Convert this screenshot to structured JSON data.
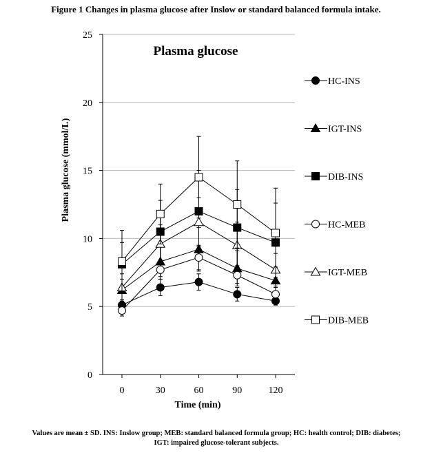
{
  "figure_title": "Figure 1 Changes in plasma glucose after Inslow or standard balanced formula intake.",
  "caption": {
    "line1": "Values are mean ± SD. INS: Inslow group; MEB: standard balanced formula group; HC: health control; DIB: diabetes;",
    "line2": "IGT: impaired glucose-tolerant subjects."
  },
  "chart_data": {
    "type": "line",
    "title": "Plasma glucose",
    "xlabel": "Time (min)",
    "ylabel": "Plasma glucose (mmol/L)",
    "x": [
      0,
      30,
      60,
      90,
      120
    ],
    "x_tick_labels": [
      "0",
      "30",
      "60",
      "90",
      "120"
    ],
    "ylim": [
      0,
      25
    ],
    "y_ticks": [
      0,
      5,
      10,
      15,
      20,
      25
    ],
    "grid": "horizontal",
    "legend_position": "right",
    "series": [
      {
        "name": "HC-INS",
        "marker": "circle",
        "fill": "filled",
        "values": [
          5.1,
          6.4,
          6.8,
          5.9,
          5.4
        ],
        "sd": [
          0.4,
          0.6,
          0.6,
          0.5,
          0.3
        ]
      },
      {
        "name": "IGT-INS",
        "marker": "triangle",
        "fill": "filled",
        "values": [
          6.2,
          8.3,
          9.2,
          7.8,
          6.9
        ],
        "sd": [
          0.8,
          1.1,
          1.6,
          1.3,
          1.0
        ]
      },
      {
        "name": "DIB-INS",
        "marker": "square",
        "fill": "filled",
        "values": [
          8.1,
          10.5,
          12.0,
          10.8,
          9.7
        ],
        "sd": [
          1.6,
          2.3,
          3.0,
          2.8,
          2.9
        ]
      },
      {
        "name": "HC-MEB",
        "marker": "circle",
        "fill": "open",
        "values": [
          4.7,
          7.7,
          8.6,
          7.3,
          5.9
        ],
        "sd": [
          0.4,
          0.7,
          0.9,
          0.6,
          0.5
        ]
      },
      {
        "name": "IGT-MEB",
        "marker": "triangle",
        "fill": "open",
        "values": [
          6.4,
          9.6,
          11.2,
          9.5,
          7.7
        ],
        "sd": [
          1.0,
          1.4,
          1.8,
          1.7,
          1.2
        ]
      },
      {
        "name": "DIB-MEB",
        "marker": "square",
        "fill": "open",
        "values": [
          8.3,
          11.8,
          14.5,
          12.5,
          10.4
        ],
        "sd": [
          2.3,
          2.2,
          3.0,
          3.2,
          3.3
        ]
      }
    ]
  }
}
